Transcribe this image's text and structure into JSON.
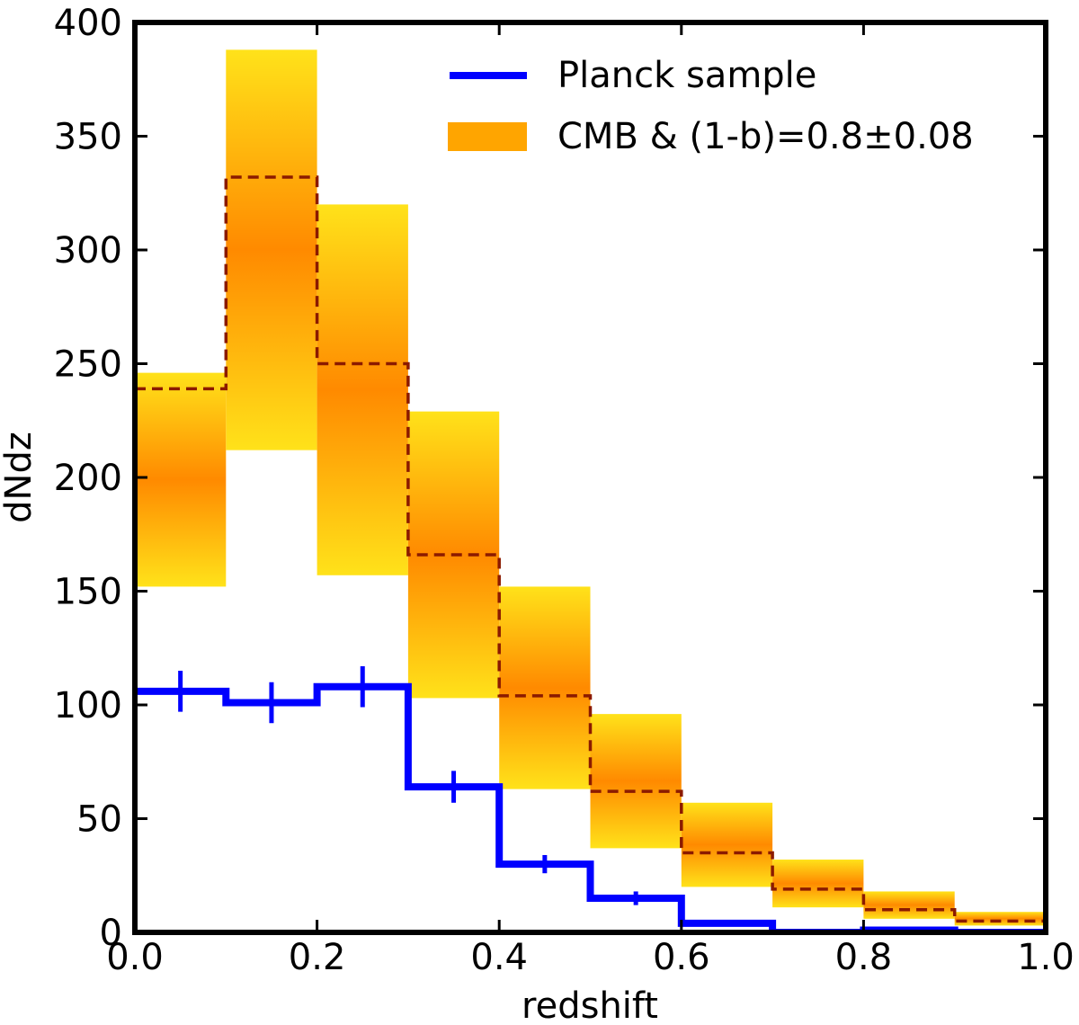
{
  "chart_data": {
    "type": "histogram",
    "title": "",
    "xlabel": "redshift",
    "ylabel": "dNdz",
    "xlim": [
      0.0,
      1.0
    ],
    "ylim": [
      0,
      400
    ],
    "grid": false,
    "legend_position": "top-right",
    "x_ticks": [
      "0.0",
      "0.2",
      "0.4",
      "0.6",
      "0.8",
      "1.0"
    ],
    "y_ticks": [
      "0",
      "50",
      "100",
      "150",
      "200",
      "250",
      "300",
      "350",
      "400"
    ],
    "bin_edges": [
      0.0,
      0.1,
      0.2,
      0.3,
      0.4,
      0.5,
      0.6,
      0.7,
      0.8,
      0.9,
      1.0
    ],
    "series": [
      {
        "name": "Planck sample",
        "style": "step",
        "color": "#0000ff",
        "values": [
          106,
          101,
          108,
          64,
          30,
          15,
          4,
          0,
          1,
          0
        ],
        "errors": [
          9,
          9,
          9,
          7,
          4,
          3,
          1,
          0,
          0,
          0
        ]
      },
      {
        "name": "CMB & (1-b)=0.8±0.08",
        "style": "band",
        "color_outer": "#ffe21a",
        "color_inner": "#ff8a00",
        "median_color": "#8b1a00",
        "median": [
          239,
          332,
          250,
          166,
          104,
          62,
          35,
          19,
          10,
          5
        ],
        "lower": [
          152,
          212,
          157,
          103,
          63,
          37,
          20,
          11,
          6,
          3
        ],
        "upper": [
          246,
          388,
          320,
          229,
          152,
          96,
          57,
          32,
          18,
          9
        ]
      }
    ]
  }
}
